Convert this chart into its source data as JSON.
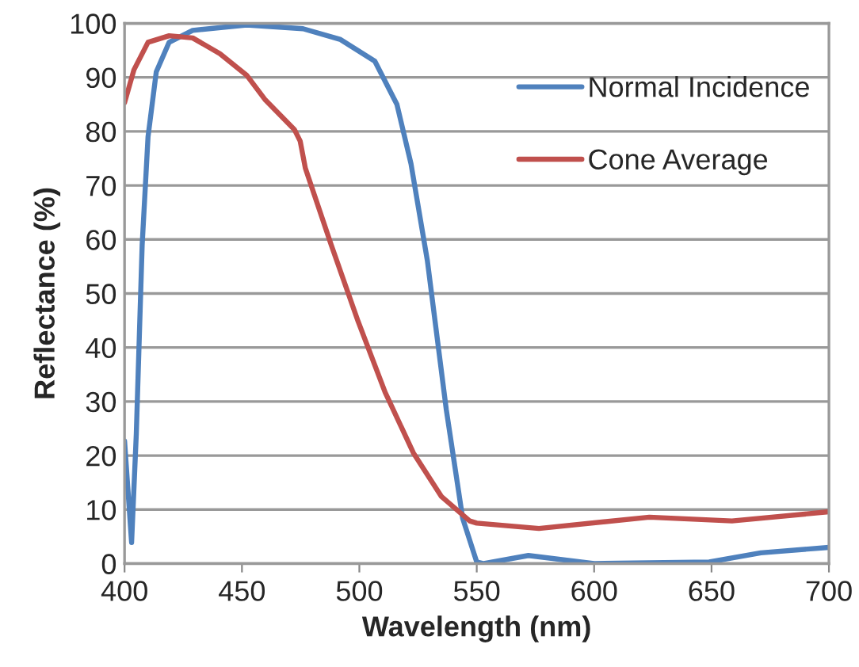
{
  "chart_data": {
    "type": "line",
    "xlabel": "Wavelength (nm)",
    "ylabel": "Reflectance (%)",
    "xlim": [
      400,
      700
    ],
    "xticks": [
      400,
      450,
      500,
      550,
      600,
      650,
      700
    ],
    "ylim": [
      0,
      100
    ],
    "yticks": [
      0,
      10,
      20,
      30,
      40,
      50,
      60,
      70,
      80,
      90,
      100
    ],
    "grid": "y",
    "legend": "top right",
    "marker": "none",
    "line_style": "solid",
    "series": [
      {
        "name": "Normal Incidence",
        "color": "#4f81bd",
        "x": [
          400,
          403,
          405,
          407.5,
          410,
          413.5,
          419,
          429,
          452,
          476,
          492,
          506.6,
          516,
          522,
          529,
          537,
          544,
          550,
          553,
          572,
          600,
          649,
          671,
          700
        ],
        "values": [
          22.7,
          3.9,
          24,
          59,
          79,
          91,
          96.5,
          98.7,
          99.7,
          99,
          97,
          93,
          85,
          74,
          56,
          28.6,
          8.4,
          0.3,
          0,
          1.5,
          0,
          0.3,
          2,
          3
        ]
      },
      {
        "name": "Cone Average",
        "color": "#c0504d",
        "x": [
          400,
          404,
          410,
          419,
          429,
          440.6,
          452,
          460,
          472.4,
          474.8,
          477,
          488,
          499.5,
          511,
          523,
          535,
          547,
          550,
          576.5,
          623.5,
          658.7,
          700
        ],
        "values": [
          85.3,
          91.4,
          96.5,
          97.7,
          97.3,
          94.4,
          90.4,
          85.8,
          80.3,
          78.2,
          73.2,
          59,
          44.8,
          31.7,
          20.5,
          12.4,
          7.9,
          7.5,
          6.5,
          8.6,
          7.9,
          9.6
        ]
      }
    ]
  }
}
